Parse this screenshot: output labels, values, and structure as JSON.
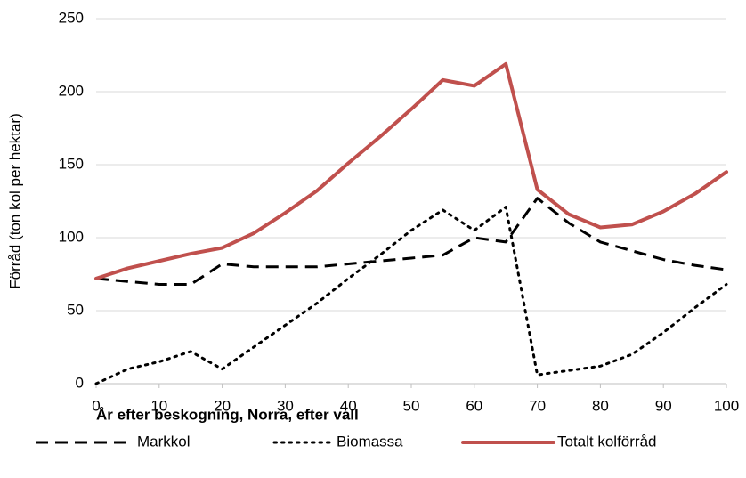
{
  "chart_data": {
    "type": "line",
    "x_label": "År efter beskogning, Norra, efter vall",
    "y_label": "Förråd (ton kol per hektar)",
    "x": [
      0,
      5,
      10,
      15,
      20,
      25,
      30,
      35,
      40,
      45,
      50,
      55,
      60,
      65,
      70,
      75,
      80,
      85,
      90,
      95,
      100
    ],
    "series": [
      {
        "name": "Markkol",
        "color": "#000000",
        "dash": "dashed",
        "values": [
          72,
          70,
          68,
          68,
          82,
          80,
          80,
          80,
          82,
          84,
          86,
          88,
          100,
          97,
          127,
          110,
          97,
          91,
          85,
          81,
          78
        ]
      },
      {
        "name": "Biomassa",
        "color": "#000000",
        "dash": "dotted",
        "values": [
          0,
          10,
          15,
          22,
          10,
          25,
          40,
          55,
          72,
          88,
          105,
          119,
          105,
          121,
          6,
          9,
          12,
          20,
          35,
          52,
          68
        ]
      },
      {
        "name": "Totalt kolförråd",
        "color": "#c0504d",
        "dash": "solid",
        "values": [
          72,
          79,
          84,
          89,
          93,
          103,
          117,
          132,
          151,
          169,
          188,
          208,
          204,
          219,
          133,
          116,
          107,
          109,
          118,
          130,
          145
        ]
      }
    ],
    "xlim": [
      0,
      100
    ],
    "xticks": [
      0,
      10,
      20,
      30,
      40,
      50,
      60,
      70,
      80,
      90,
      100
    ],
    "ylim": [
      0,
      250
    ],
    "yticks": [
      0,
      50,
      100,
      150,
      200,
      250
    ],
    "grid": true,
    "legend": "bottom"
  }
}
